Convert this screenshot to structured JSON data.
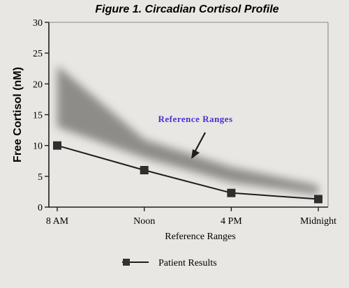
{
  "chart_data": {
    "type": "line",
    "title": "Figure 1.  Circadian Cortisol Profile",
    "ylabel": "Free Cortisol (nM)",
    "xlabel": "Reference Ranges",
    "ylim": [
      0,
      30
    ],
    "yticks": [
      0,
      5,
      10,
      15,
      20,
      25,
      30
    ],
    "categories": [
      "8 AM",
      "Noon",
      "4 PM",
      "Midnight"
    ],
    "series": [
      {
        "name": "Patient Results",
        "values": [
          10,
          6,
          2.3,
          1.3
        ],
        "color": "#1e1e1e"
      }
    ],
    "reference_band": {
      "lower": [
        13,
        8,
        4,
        2
      ],
      "upper": [
        23,
        11,
        6.5,
        3.5
      ],
      "color": "#7f7d7a"
    },
    "annotation": {
      "text": "Reference Ranges",
      "color": "#4a2fd4"
    },
    "legend_position": "bottom-center"
  }
}
